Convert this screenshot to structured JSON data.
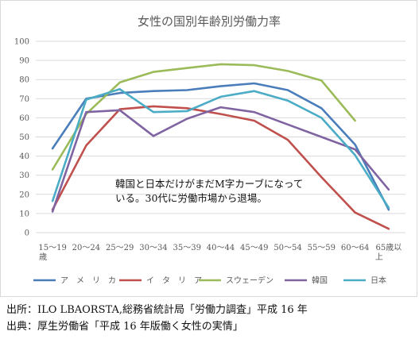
{
  "chart_data": {
    "type": "line",
    "title": "女性の国別年齢別労働力率",
    "categories": [
      [
        "15～19",
        "歳"
      ],
      [
        "20～24"
      ],
      [
        "25～29"
      ],
      [
        "30～34"
      ],
      [
        "35～39"
      ],
      [
        "40～44"
      ],
      [
        "45～49"
      ],
      [
        "50～54"
      ],
      [
        "55～59"
      ],
      [
        "60～64"
      ],
      [
        "65歳以",
        "上"
      ]
    ],
    "ylim": [
      0,
      100
    ],
    "yticks": [
      0,
      10,
      20,
      30,
      40,
      50,
      60,
      70,
      80,
      90,
      100
    ],
    "grid": true,
    "legend_position": "bottom",
    "series": [
      {
        "name": "ア　メ　リ　カ",
        "color": "#4a7ebb",
        "values": [
          44,
          70,
          73,
          74,
          74.5,
          76.5,
          78,
          74.5,
          65,
          46,
          12
        ]
      },
      {
        "name": "イ　タ　リ　ア",
        "color": "#c0504d",
        "values": [
          12,
          45.5,
          64.5,
          66,
          65,
          62,
          58.5,
          48.5,
          29,
          10.5,
          2
        ]
      },
      {
        "name": "スウェーデン",
        "color": "#9bbb59",
        "values": [
          33,
          62,
          78.5,
          84,
          86,
          88,
          87.5,
          84.5,
          79.5,
          58.5,
          null
        ]
      },
      {
        "name": "韓国",
        "color": "#8064a2",
        "values": [
          11,
          63,
          64,
          50.5,
          59.5,
          65.5,
          63,
          56.5,
          50,
          43.5,
          22.5
        ]
      },
      {
        "name": "日本",
        "color": "#4bacc6",
        "values": [
          16.5,
          69.5,
          75,
          63,
          63.5,
          71,
          74,
          69,
          60,
          40.5,
          13
        ]
      }
    ],
    "annotation": [
      "韓国と日本だけがまだM字カーブになって",
      "いる。30代に労働市場から退場。"
    ]
  },
  "sources": {
    "line1": "出所：ILO LBAORSTA,総務省統計局「労働力調査」平成 16 年",
    "line2": "出典：厚生労働省「平成 16 年版働く女性の実情」"
  }
}
